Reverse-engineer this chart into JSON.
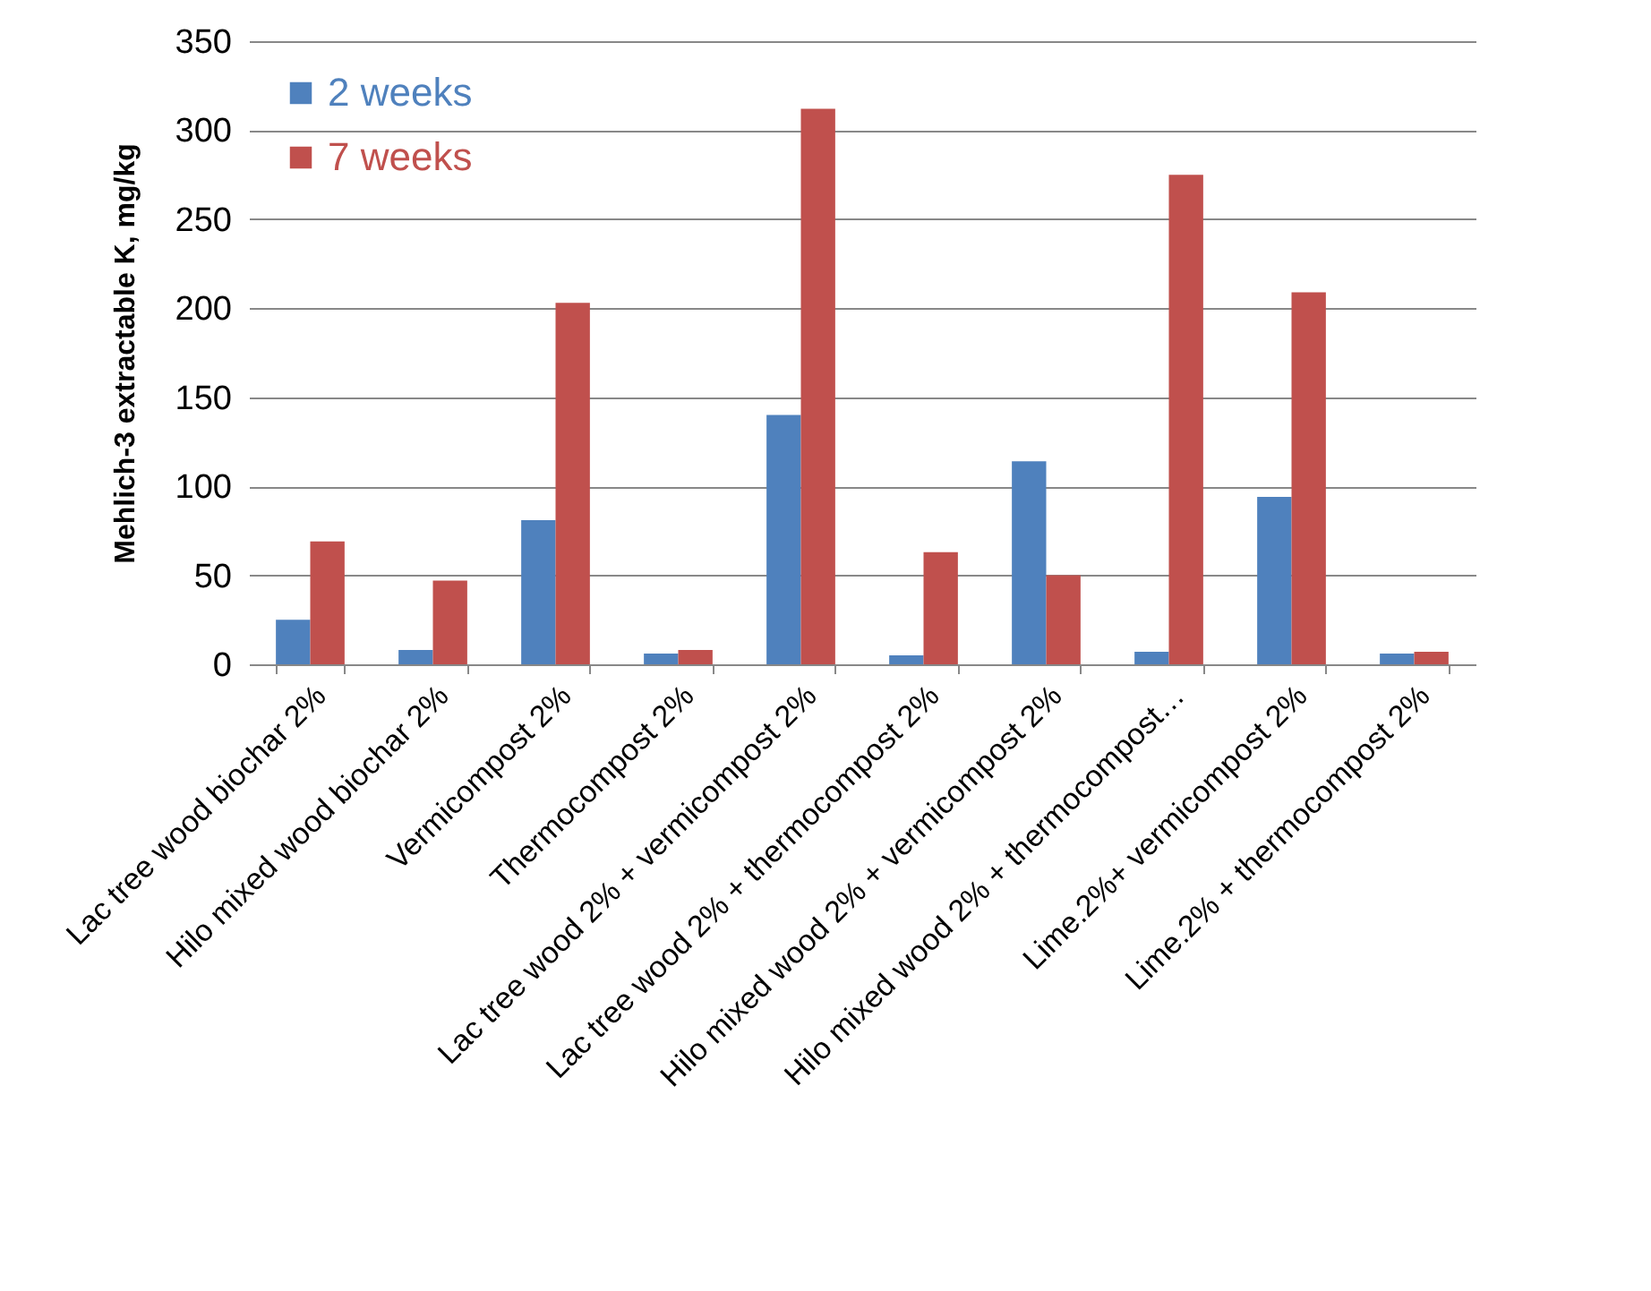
{
  "chart_data": {
    "type": "bar",
    "ylabel": "Mehlich-3 extractable K, mg/kg",
    "categories": [
      "Lac tree  wood biochar 2%",
      "Hilo mixed wood biochar 2%",
      "Vermicompost 2%",
      "Thermocompost 2%",
      "Lac tree wood 2% + vermicompost 2%",
      "Lac tree wood 2% + thermocompost 2%",
      "Hilo mixed wood 2% + vermicompost 2%",
      "Hilo mixed wood 2% + thermocompost…",
      "Lime.2%+ vermicompost 2%",
      "Lime.2% + thermocompost 2%"
    ],
    "series": [
      {
        "name": "2 weeks",
        "color": "#4f81bd",
        "values": [
          25,
          8,
          81,
          6,
          140,
          5,
          114,
          7,
          94,
          6
        ]
      },
      {
        "name": "7 weeks",
        "color": "#c0504d",
        "values": [
          69,
          47,
          203,
          8,
          312,
          63,
          50,
          275,
          209,
          7
        ]
      }
    ],
    "ylim": [
      0,
      350
    ],
    "yticks": [
      0,
      50,
      100,
      150,
      200,
      250,
      300,
      350
    ],
    "grid": "y",
    "legend": "top left"
  }
}
